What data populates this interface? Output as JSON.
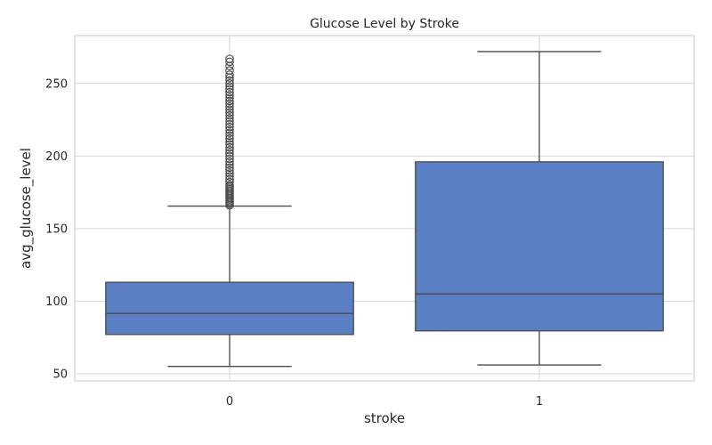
{
  "chart_data": {
    "type": "box",
    "title": "Glucose Level by Stroke",
    "xlabel": "stroke",
    "ylabel": "avg_glucose_level",
    "categories": [
      "0",
      "1"
    ],
    "ylim": [
      45,
      283
    ],
    "yticks": [
      50,
      100,
      150,
      200,
      250
    ],
    "grid": true,
    "box_color": "#5b7fc4",
    "line_color": "#4a4a4a",
    "boxes": [
      {
        "category": "0",
        "whisker_low": 55,
        "q1": 77,
        "median": 91.5,
        "q3": 113,
        "whisker_high": 165.5,
        "outliers": [
          166,
          167,
          168,
          169,
          170,
          171,
          172,
          173,
          174,
          175,
          176,
          177,
          178,
          179,
          180,
          182,
          184,
          186,
          188,
          190,
          192,
          194,
          196,
          198,
          200,
          202,
          204,
          206,
          208,
          210,
          212,
          214,
          216,
          218,
          220,
          222,
          224,
          226,
          228,
          230,
          232,
          234,
          236,
          238,
          240,
          242,
          244,
          246,
          248,
          250,
          252,
          254,
          256,
          259,
          262,
          265,
          267
        ]
      },
      {
        "category": "1",
        "whisker_low": 56,
        "q1": 79.5,
        "median": 105,
        "q3": 196,
        "whisker_high": 272,
        "outliers": []
      }
    ]
  }
}
